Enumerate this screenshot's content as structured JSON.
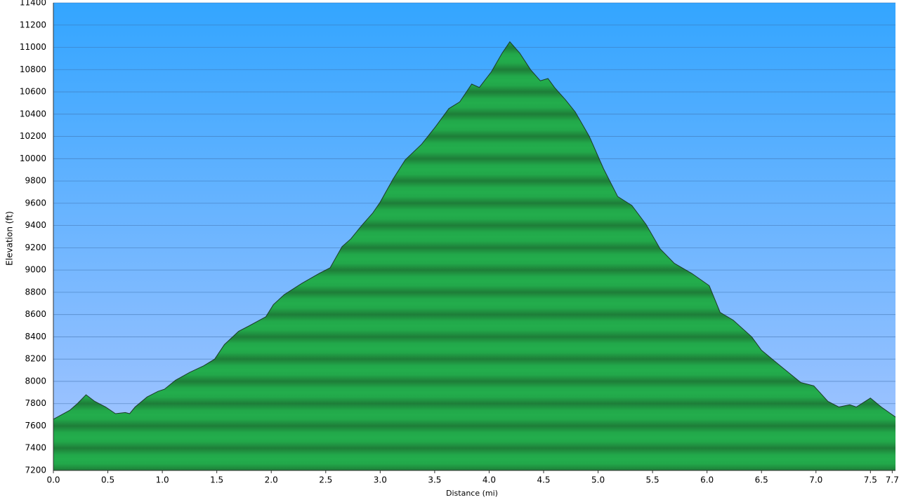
{
  "chart_data": {
    "type": "area",
    "x_label": "Distance (mi)",
    "y_label": "Elevation (ft)",
    "color": "#22a84a",
    "line_color": "#1d3a2a",
    "grid": true,
    "x": [
      0,
      0.15,
      0.22,
      0.3,
      0.38,
      0.48,
      0.57,
      0.66,
      0.7,
      0.75,
      0.86,
      0.96,
      1.02,
      1.12,
      1.25,
      1.38,
      1.48,
      1.57,
      1.7,
      1.8,
      1.95,
      2.02,
      2.12,
      2.28,
      2.44,
      2.54,
      2.65,
      2.73,
      2.83,
      2.93,
      3.0,
      3.12,
      3.23,
      3.38,
      3.51,
      3.63,
      3.73,
      3.84,
      3.91,
      4.02,
      4.12,
      4.19,
      4.28,
      4.38,
      4.47,
      4.54,
      4.6,
      4.7,
      4.79,
      4.92,
      5.05,
      5.18,
      5.31,
      5.44,
      5.57,
      5.7,
      5.86,
      6.02,
      6.12,
      6.24,
      6.41,
      6.5,
      6.66,
      6.86,
      6.98,
      7.11,
      7.21,
      7.31,
      7.37,
      7.5,
      7.6,
      7.73
    ],
    "values": [
      7660,
      7740,
      7800,
      7880,
      7820,
      7770,
      7710,
      7720,
      7710,
      7770,
      7860,
      7910,
      7930,
      8010,
      8080,
      8140,
      8200,
      8330,
      8450,
      8500,
      8580,
      8690,
      8780,
      8880,
      8970,
      9020,
      9210,
      9280,
      9400,
      9510,
      9610,
      9820,
      9990,
      10130,
      10290,
      10450,
      10510,
      10670,
      10640,
      10780,
      10950,
      11050,
      10950,
      10800,
      10700,
      10720,
      10640,
      10530,
      10420,
      10200,
      9910,
      9660,
      9580,
      9410,
      9190,
      9060,
      8970,
      8860,
      8620,
      8550,
      8400,
      8280,
      8150,
      7990,
      7960,
      7820,
      7770,
      7790,
      7770,
      7850,
      7770,
      7680
    ],
    "xlim": [
      0,
      7.73
    ],
    "ylim": [
      7200,
      11400
    ],
    "xticks": [
      {
        "value": 0,
        "label": "0.0"
      },
      0.5,
      {
        "value": 1,
        "label": "1.0"
      },
      1.5,
      {
        "value": 2,
        "label": "2.0"
      },
      2.5,
      {
        "value": 3,
        "label": "3.0"
      },
      3.5,
      {
        "value": 4,
        "label": "4.0"
      },
      4.5,
      {
        "value": 5,
        "label": "5.0"
      },
      5.5,
      {
        "value": 6,
        "label": "6.0"
      },
      6.5,
      {
        "value": 7,
        "label": "7.0"
      },
      7.5,
      7.7
    ],
    "yticks": [
      7200,
      7400,
      7600,
      7800,
      8000,
      8200,
      8400,
      8600,
      8800,
      9000,
      9200,
      9400,
      9600,
      9800,
      10000,
      10200,
      10400,
      10600,
      10800,
      11000,
      11200,
      11400
    ]
  }
}
